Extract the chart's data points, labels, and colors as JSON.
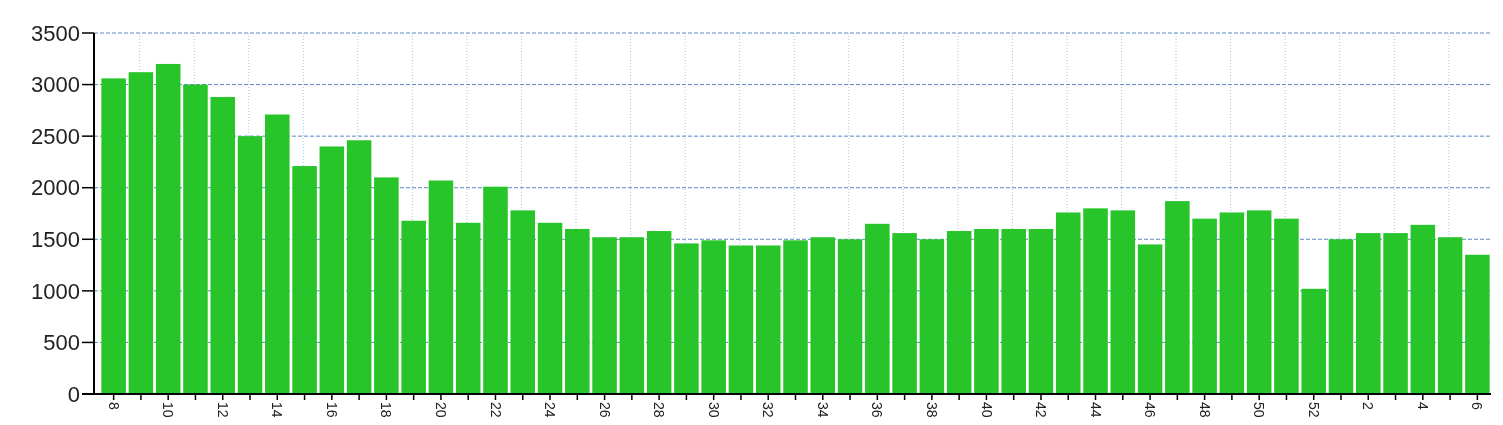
{
  "chart_data": {
    "type": "bar",
    "categories": [
      "8",
      null,
      "10",
      null,
      "12",
      null,
      "14",
      null,
      "16",
      null,
      "18",
      null,
      "20",
      null,
      "22",
      null,
      "24",
      null,
      "26",
      null,
      "28",
      null,
      "30",
      null,
      "32",
      null,
      "34",
      null,
      "36",
      null,
      "38",
      null,
      "40",
      null,
      "42",
      null,
      "44",
      null,
      "46",
      null,
      "48",
      null,
      "50",
      null,
      "52",
      null,
      "2",
      null,
      "4",
      null,
      "6"
    ],
    "values": [
      3060,
      3120,
      3200,
      3000,
      2880,
      2500,
      2710,
      2210,
      2400,
      2460,
      2100,
      1680,
      2070,
      1660,
      2010,
      1780,
      1660,
      1600,
      1520,
      1520,
      1580,
      1460,
      1490,
      1440,
      1440,
      1490,
      1520,
      1500,
      1650,
      1560,
      1500,
      1580,
      1600,
      1600,
      1600,
      1760,
      1800,
      1780,
      1450,
      1870,
      1700,
      1760,
      1780,
      1700,
      1020,
      1500,
      1560,
      1560,
      1640,
      1520,
      1350
    ],
    "color": "#28c52a",
    "ylim": [
      0,
      3500
    ],
    "yticks": [
      0,
      500,
      1000,
      1500,
      2000,
      2500,
      3000,
      3500
    ],
    "grid": true
  }
}
